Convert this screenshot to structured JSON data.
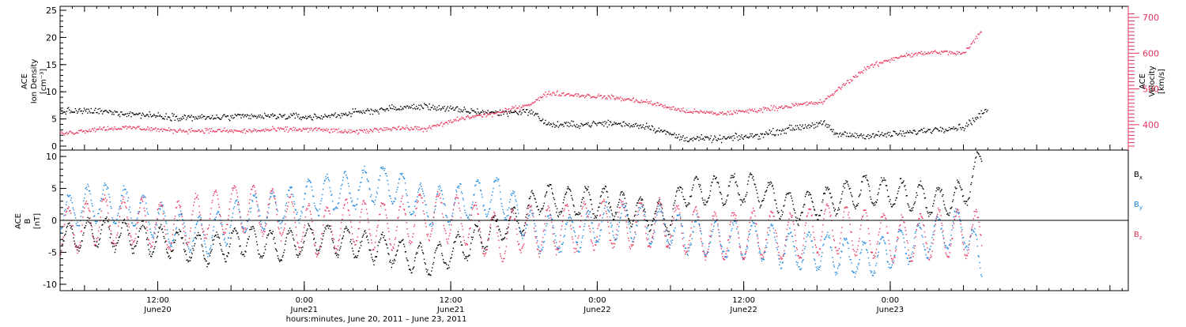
{
  "chart_data": [
    {
      "type": "scatter",
      "panel": "top",
      "ylabel_lines": [
        "ACE",
        "Ion Density",
        "[cm⁻³]"
      ],
      "ylim": [
        0,
        25
      ],
      "y_ticks": [
        0,
        5,
        10,
        15,
        20,
        25
      ],
      "y2label_lines": [
        "ACE",
        "Velocity",
        "[km/s]"
      ],
      "y2lim": [
        340,
        720
      ],
      "y2_ticks": [
        400,
        500,
        600,
        700
      ],
      "series": [
        {
          "key": "density",
          "color": "#000000",
          "axis": "left",
          "x_hours": [
            0,
            3,
            6,
            9,
            12,
            15,
            18,
            21,
            24,
            27,
            30,
            33,
            36,
            38.5,
            40,
            42,
            45,
            48,
            51,
            54,
            57,
            60,
            62.5,
            63.5,
            66,
            69,
            72,
            74,
            76
          ],
          "values": [
            6.5,
            6.5,
            6,
            5.5,
            5.3,
            5.5,
            5.6,
            5.4,
            6.2,
            7,
            7.4,
            6.6,
            6.2,
            6.5,
            4,
            4,
            4.3,
            3.8,
            1.5,
            1.4,
            2,
            3.4,
            4.3,
            2.3,
            2,
            2.4,
            3.3,
            3.6,
            7
          ]
        },
        {
          "key": "velocity",
          "color": "#e8325a",
          "axis": "right",
          "x_hours": [
            0,
            3,
            6,
            9,
            12,
            15,
            18,
            21,
            24,
            27,
            30,
            33,
            36,
            38.5,
            40,
            42,
            45,
            48,
            51,
            54,
            57,
            60,
            62.5,
            63.5,
            66,
            69,
            72,
            74,
            75.5
          ],
          "values": [
            375,
            390,
            393,
            385,
            385,
            383,
            388,
            388,
            380,
            392,
            390,
            420,
            435,
            460,
            490,
            485,
            478,
            465,
            440,
            432,
            442,
            455,
            465,
            495,
            560,
            595,
            605,
            600,
            665
          ]
        }
      ]
    },
    {
      "type": "scatter",
      "panel": "bottom",
      "ylabel_lines": [
        "ACE",
        "B",
        "[nT]"
      ],
      "ylim": [
        -11,
        11
      ],
      "y_ticks": [
        -10,
        -5,
        0,
        5,
        10
      ],
      "reference_line": 0,
      "series": [
        {
          "key": "bx",
          "name": "Bx",
          "color": "#000000",
          "x_hours": [
            0,
            3,
            6,
            9,
            12,
            15,
            18,
            21,
            24,
            27,
            30,
            33,
            36,
            38,
            39,
            42,
            45,
            48,
            50,
            51,
            54,
            57,
            60,
            63,
            66,
            69,
            72,
            74,
            75.5
          ],
          "values": [
            -3,
            -1.5,
            -2.5,
            -3.5,
            -4.5,
            -3,
            -4,
            -2.5,
            -3.5,
            -4.5,
            -6.5,
            -4,
            -1,
            0.5,
            3.5,
            3,
            3,
            1,
            0.5,
            4.5,
            5,
            5,
            2,
            3,
            5,
            4,
            3,
            4,
            10
          ],
          "wiggle": 2.2
        },
        {
          "key": "by",
          "name": "By",
          "color": "#1a85e0",
          "x_hours": [
            0,
            3,
            6,
            9,
            12,
            15,
            18,
            21,
            24,
            27,
            30,
            33,
            36,
            38,
            39,
            42,
            45,
            48,
            50,
            51,
            54,
            57,
            60,
            63,
            66,
            69,
            72,
            74,
            75.5
          ],
          "values": [
            1,
            3,
            2,
            -1,
            -2.5,
            1,
            2,
            4,
            5,
            6,
            2,
            3,
            4,
            0,
            -2,
            -2,
            0,
            -0.5,
            -1,
            -2,
            -3,
            -3,
            -4.5,
            -5,
            -6,
            -4,
            -2,
            -0.5,
            -7
          ],
          "wiggle": 2.8
        },
        {
          "key": "bz",
          "name": "Bz",
          "color": "#e8325a",
          "x_hours": [
            0,
            3,
            6,
            9,
            12,
            15,
            18,
            21,
            24,
            27,
            30,
            33,
            36,
            38,
            39,
            42,
            45,
            48,
            50,
            51,
            54,
            57,
            60,
            63,
            66,
            69,
            72,
            74,
            75.5
          ],
          "values": [
            -2,
            0,
            0,
            -1,
            1,
            2,
            1,
            -2,
            0,
            -1,
            1,
            0,
            -3,
            -1,
            -1.5,
            -1,
            -0.5,
            -0.5,
            -0.5,
            -1.5,
            -2.5,
            -2,
            -2.5,
            -1,
            -2,
            -3,
            -2,
            -2,
            -2
          ],
          "wiggle": 3.6
        }
      ]
    }
  ],
  "x_axis": {
    "start_hours": 0,
    "end_hours": 87.5,
    "ticks": [
      {
        "at_hours": 8,
        "time": "12:00",
        "date": "June20"
      },
      {
        "at_hours": 20,
        "time": "0:00",
        "date": "June21"
      },
      {
        "at_hours": 32,
        "time": "12:00",
        "date": "June21"
      },
      {
        "at_hours": 44,
        "time": "0:00",
        "date": "June22"
      },
      {
        "at_hours": 56,
        "time": "12:00",
        "date": "June22"
      },
      {
        "at_hours": 68,
        "time": "0:00",
        "date": "June23"
      }
    ],
    "minor_step_hours": 1,
    "medium_step_hours": 6,
    "label": "hours:minutes, June 20, 2011 – June 23, 2011"
  },
  "legend": {
    "placement": "right",
    "items": [
      {
        "main": "B",
        "sub": "x",
        "color": "#000000"
      },
      {
        "main": "B",
        "sub": "y",
        "color": "#1a85e0"
      },
      {
        "main": "B",
        "sub": "z",
        "color": "#e8325a"
      }
    ]
  },
  "colors": {
    "axis": "#000000",
    "velocity_axis": "#e8325a",
    "background": "#ffffff"
  }
}
